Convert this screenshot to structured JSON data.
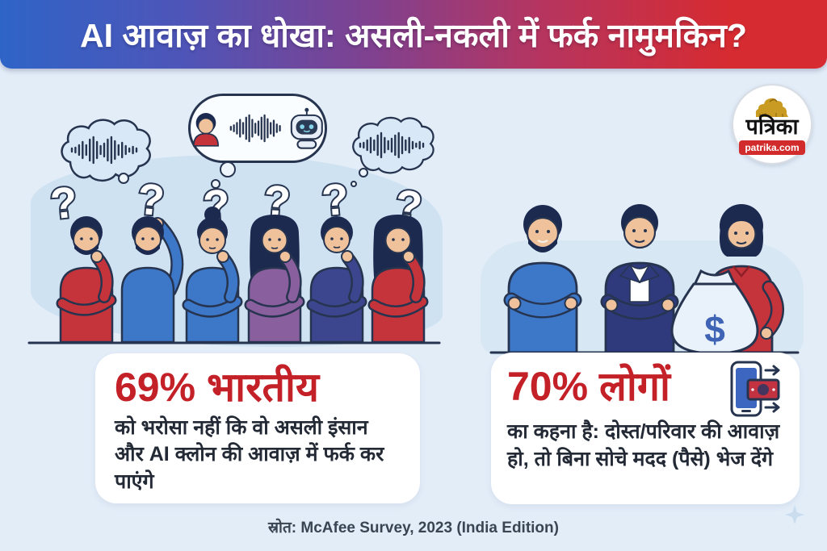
{
  "header": {
    "title": "AI आवाज़ का धोखा: असली-नकली में फर्क नामुमकिन?"
  },
  "logo": {
    "site_name": "पत्रिका",
    "site_url": "patrika.com"
  },
  "illustration": {
    "question_mark": "?",
    "money_symbol": "$"
  },
  "cards": [
    {
      "headline": "69% भारतीय",
      "body": "को भरोसा नहीं कि वो असली इंसान और AI क्लोन की आवाज़ में फर्क कर पाएंगे"
    },
    {
      "headline": "70% लोगों",
      "body": "का कहना है: दोस्त/परिवार की आवाज़ हो, तो बिना सोचे मदद (पैसे) भेज देंगे"
    }
  ],
  "source": "स्रोत: McAfee Survey, 2023 (India Edition)",
  "colors": {
    "background": "#e3edf8",
    "header_gradient_start": "#2f64c7",
    "header_gradient_end": "#d62b31",
    "accent_red": "#c32127",
    "outline_navy": "#26344f"
  }
}
